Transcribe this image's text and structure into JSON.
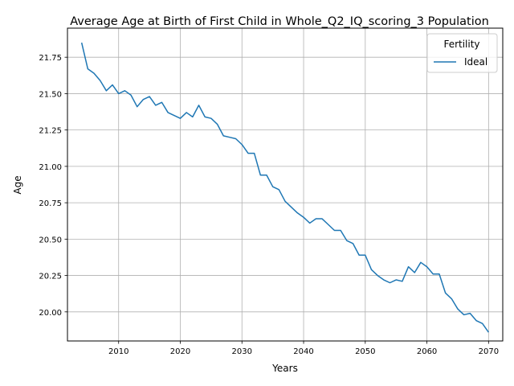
{
  "chart_data": {
    "type": "line",
    "title": "Average Age at Birth of First Child in Whole_Q2_IQ_scoring_3 Population",
    "xlabel": "Years",
    "ylabel": "Age",
    "xlim": [
      2001.7,
      2072.3
    ],
    "ylim": [
      19.8,
      21.95
    ],
    "x_ticks": [
      2010,
      2020,
      2030,
      2040,
      2050,
      2060,
      2070
    ],
    "y_ticks": [
      20.0,
      20.25,
      20.5,
      20.75,
      21.0,
      21.25,
      21.5,
      21.75
    ],
    "x_tick_labels": [
      "2010",
      "2020",
      "2030",
      "2040",
      "2050",
      "2060",
      "2070"
    ],
    "y_tick_labels": [
      "20.00",
      "20.25",
      "20.50",
      "20.75",
      "21.00",
      "21.25",
      "21.50",
      "21.75"
    ],
    "grid": true,
    "legend": {
      "title": "Fertility",
      "position": "top-right"
    },
    "series": [
      {
        "name": "Ideal",
        "color": "#1f77b4",
        "x": [
          2004,
          2005,
          2006,
          2007,
          2008,
          2009,
          2010,
          2011,
          2012,
          2013,
          2014,
          2015,
          2016,
          2017,
          2018,
          2019,
          2020,
          2021,
          2022,
          2023,
          2024,
          2025,
          2026,
          2027,
          2028,
          2029,
          2030,
          2031,
          2032,
          2033,
          2034,
          2035,
          2036,
          2037,
          2038,
          2039,
          2040,
          2041,
          2042,
          2043,
          2044,
          2045,
          2046,
          2047,
          2048,
          2049,
          2050,
          2051,
          2052,
          2053,
          2054,
          2055,
          2056,
          2057,
          2058,
          2059,
          2060,
          2061,
          2062,
          2063,
          2064,
          2065,
          2066,
          2067,
          2068,
          2069,
          2070
        ],
        "y": [
          21.85,
          21.67,
          21.64,
          21.59,
          21.52,
          21.56,
          21.5,
          21.52,
          21.49,
          21.41,
          21.46,
          21.48,
          21.42,
          21.44,
          21.37,
          21.35,
          21.33,
          21.37,
          21.34,
          21.42,
          21.34,
          21.33,
          21.29,
          21.21,
          21.2,
          21.19,
          21.15,
          21.09,
          21.09,
          20.94,
          20.94,
          20.86,
          20.84,
          20.76,
          20.72,
          20.68,
          20.65,
          20.61,
          20.64,
          20.64,
          20.6,
          20.56,
          20.56,
          20.49,
          20.47,
          20.39,
          20.39,
          20.29,
          20.25,
          20.22,
          20.2,
          20.22,
          20.21,
          20.31,
          20.27,
          20.34,
          20.31,
          20.26,
          20.26,
          20.13,
          20.09,
          20.02,
          19.98,
          19.99,
          19.94,
          19.92,
          19.86
        ]
      }
    ]
  }
}
